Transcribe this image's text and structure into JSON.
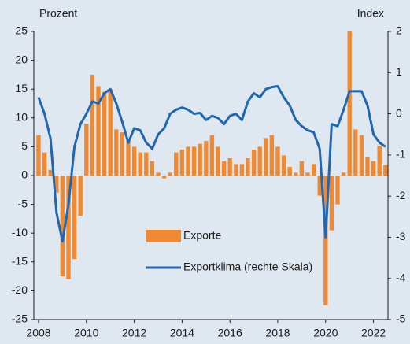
{
  "chart_data": {
    "type": "bar",
    "ylabel": "Prozent",
    "y2label": "Index",
    "categories": [
      "2008",
      null,
      null,
      null,
      null,
      null,
      null,
      null,
      "2010",
      null,
      null,
      null,
      null,
      null,
      null,
      null,
      "2012",
      null,
      null,
      null,
      null,
      null,
      null,
      null,
      "2014",
      null,
      null,
      null,
      null,
      null,
      null,
      null,
      "2016",
      null,
      null,
      null,
      null,
      null,
      null,
      null,
      "2018",
      null,
      null,
      null,
      null,
      null,
      null,
      null,
      "2020",
      null,
      null,
      null,
      null,
      null,
      null,
      null,
      "2022",
      null,
      null
    ],
    "series": [
      {
        "name": "Exporte",
        "type": "bar",
        "color": "#f08a32",
        "values": [
          7,
          4,
          1,
          -3,
          -17.5,
          -18,
          -14.5,
          -7,
          9,
          17.5,
          15.5,
          14.5,
          15,
          8,
          7.5,
          6,
          5,
          4,
          4,
          2.5,
          0.5,
          -0.5,
          0.5,
          4,
          4.5,
          5,
          5,
          5.5,
          6,
          7,
          5,
          2.5,
          3,
          2,
          2,
          3,
          4.5,
          5,
          6.5,
          7,
          5,
          3.5,
          1.5,
          0.5,
          2.5,
          0.5,
          2,
          -3.5,
          -22.5,
          -9.5,
          -5,
          0.5,
          25,
          8,
          7,
          3.2,
          2.5,
          5.2,
          1.8
        ]
      },
      {
        "name": "Exportklima (rechte Skala)",
        "type": "line",
        "axis": "y2",
        "color": "#1f67b1",
        "values": [
          0.4,
          0,
          -0.6,
          -2.4,
          -3.1,
          -2.2,
          -0.8,
          -0.25,
          0,
          0.3,
          0.25,
          0.5,
          0.6,
          0.25,
          -0.2,
          -0.7,
          -0.35,
          -0.4,
          -0.7,
          -0.85,
          -0.5,
          -0.35,
          0,
          0.1,
          0.15,
          0.1,
          0,
          0.02,
          -0.15,
          -0.05,
          -0.1,
          -0.25,
          -0.05,
          0,
          -0.15,
          0.3,
          0.5,
          0.4,
          0.6,
          0.65,
          0.67,
          0.4,
          0.2,
          -0.15,
          -0.3,
          -0.4,
          -0.45,
          -0.85,
          -3.0,
          -0.25,
          -0.3,
          0.1,
          0.55,
          0.55,
          0.55,
          0.2,
          -0.5,
          -0.7,
          -0.8
        ]
      }
    ],
    "ylim": [
      -25,
      25
    ],
    "yticks": [
      -25,
      -20,
      -15,
      -10,
      -5,
      0,
      5,
      10,
      15,
      20,
      25
    ],
    "y2lim": [
      -5,
      2
    ],
    "y2ticks": [
      -5,
      -4,
      -3,
      -2,
      -1,
      0,
      1,
      2
    ]
  }
}
